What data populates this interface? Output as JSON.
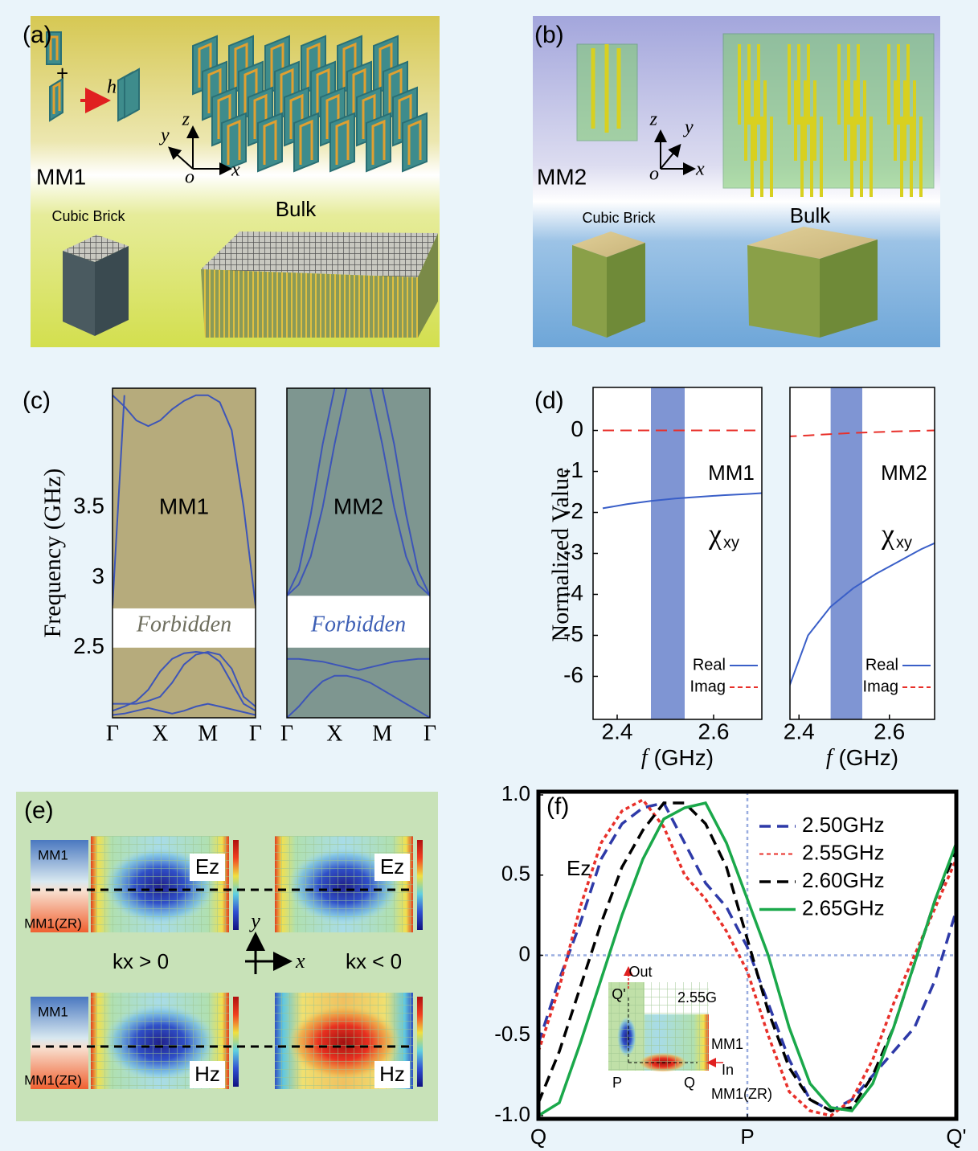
{
  "panel_a": {
    "label": "(a)",
    "h": "h",
    "y": "y",
    "z": "z",
    "o": "o",
    "x": "x",
    "unit": "MM1",
    "brick": "Cubic Brick",
    "bulk": "Bulk"
  },
  "panel_b": {
    "label": "(b)",
    "z": "z",
    "y": "y",
    "o": "o",
    "x": "x",
    "unit": "MM2",
    "brick": "Cubic Brick",
    "bulk": "Bulk"
  },
  "panel_e": {
    "label": "(e)",
    "top_left": {
      "upper": "MM1",
      "lower": "MM1(ZR)"
    },
    "bottom_left": {
      "upper": "MM1",
      "lower": "MM1(ZR)"
    },
    "ez": [
      "Ez",
      "Ez"
    ],
    "hz": [
      "Hz",
      "Hz"
    ],
    "kx_pos": "kx > 0",
    "kx_neg": "kx < 0",
    "y": "y",
    "x": "x"
  },
  "chart_data": [
    {
      "type": "line",
      "panel_label": "(c)",
      "ylabel": "Frequency (GHz)",
      "label": "MM1",
      "annotation": "Forbidden",
      "annotation_color": "#6e6e5e",
      "background": "#b6ab7c",
      "gap": [
        2.5,
        2.78
      ],
      "x": [
        0,
        0.25,
        0.5,
        0.75,
        1,
        1.25,
        1.5,
        1.75,
        2,
        2.25,
        2.5,
        2.75,
        3
      ],
      "xlim": [
        0,
        3
      ],
      "xticks": [
        {
          "value": 0,
          "label": "Γ"
        },
        {
          "value": 1,
          "label": "X"
        },
        {
          "value": 2,
          "label": "M"
        },
        {
          "value": 3,
          "label": "Γ"
        }
      ],
      "ylim": [
        2.0,
        4.35
      ],
      "yticks": [
        2.5,
        3,
        3.5
      ],
      "series": [
        {
          "color": "#3d55b8",
          "values": [
            4.3,
            4.22,
            4.12,
            4.08,
            4.12,
            4.2,
            4.26,
            4.3,
            4.3,
            4.25,
            4.05,
            3.5,
            2.8
          ]
        },
        {
          "color": "#3d55b8",
          "values": [
            2.8,
            4.3,
            null,
            null,
            null,
            null,
            null,
            null,
            null,
            null,
            null,
            null,
            null
          ]
        },
        {
          "color": "#3d55b8",
          "values": [
            2.05,
            2.08,
            2.12,
            2.2,
            2.33,
            2.42,
            2.46,
            2.47,
            2.46,
            2.4,
            2.25,
            2.1,
            2.05
          ]
        },
        {
          "color": "#3d55b8",
          "values": [
            2.1,
            2.1,
            2.1,
            2.12,
            2.15,
            2.25,
            2.38,
            2.45,
            2.47,
            2.45,
            2.35,
            2.15,
            2.08
          ]
        },
        {
          "color": "#3d55b8",
          "values": [
            2.02,
            2.03,
            2.05,
            2.07,
            2.05,
            2.03,
            2.05,
            2.08,
            2.1,
            2.08,
            2.06,
            2.04,
            2.02
          ]
        }
      ]
    },
    {
      "type": "line",
      "label": "MM2",
      "annotation": "Forbidden",
      "annotation_color": "#3d5fb5",
      "background": "#7e9690",
      "gap": [
        2.5,
        2.87
      ],
      "x": [
        0,
        0.25,
        0.5,
        0.75,
        1,
        1.25,
        1.5,
        1.75,
        2,
        2.25,
        2.5,
        2.75,
        3
      ],
      "xlim": [
        0,
        3
      ],
      "xticks": [
        {
          "value": 0,
          "label": "Γ"
        },
        {
          "value": 1,
          "label": "X"
        },
        {
          "value": 2,
          "label": "M"
        },
        {
          "value": 3,
          "label": "Γ"
        }
      ],
      "ylim": [
        2.0,
        4.35
      ],
      "series": [
        {
          "color": "#3d55b8",
          "values": [
            2.87,
            3.05,
            3.45,
            3.95,
            4.35,
            null,
            null,
            null,
            null,
            null,
            null,
            null,
            null
          ]
        },
        {
          "color": "#3d55b8",
          "values": [
            2.87,
            2.95,
            3.15,
            3.5,
            3.95,
            4.35,
            null,
            null,
            null,
            null,
            null,
            null,
            null
          ]
        },
        {
          "color": "#3d55b8",
          "values": [
            null,
            null,
            null,
            null,
            null,
            null,
            null,
            null,
            4.35,
            3.95,
            3.45,
            3.05,
            2.87
          ]
        },
        {
          "color": "#3d55b8",
          "values": [
            null,
            null,
            null,
            null,
            null,
            null,
            null,
            4.35,
            3.95,
            3.5,
            3.15,
            2.95,
            2.87
          ]
        },
        {
          "color": "#3d55b8",
          "values": [
            2.42,
            2.42,
            2.41,
            2.4,
            2.38,
            2.36,
            2.34,
            2.36,
            2.38,
            2.4,
            2.41,
            2.42,
            2.42
          ]
        },
        {
          "color": "#3d55b8",
          "values": [
            2.0,
            2.08,
            2.18,
            2.26,
            2.3,
            2.3,
            2.28,
            2.25,
            2.2,
            2.15,
            2.1,
            2.05,
            2.0
          ]
        }
      ]
    },
    {
      "type": "line",
      "panel_label": "(d)",
      "ylabel": "Normalized Value",
      "xlabel_var": "f",
      "xlabel": "(GHz)",
      "label": "MM1",
      "chi": "χ",
      "chi_sub": "xy",
      "shade": [
        2.47,
        2.54
      ],
      "shade_color": "#7f95d3",
      "x": [
        2.37,
        2.42,
        2.47,
        2.52,
        2.57,
        2.62,
        2.67,
        2.7
      ],
      "xlim": [
        2.35,
        2.7
      ],
      "xticks": [
        2.4,
        2.6
      ],
      "ylim": [
        -7.05,
        1.05
      ],
      "yticks": [
        0,
        -1,
        -2,
        -3,
        -4,
        -5,
        -6
      ],
      "series": [
        {
          "name": "Real",
          "color": "#3a5fc8",
          "style": "solid",
          "values": [
            -1.9,
            -1.8,
            -1.72,
            -1.66,
            -1.62,
            -1.58,
            -1.55,
            -1.53
          ]
        },
        {
          "name": "Imag",
          "color": "#e8302a",
          "style": "dashed",
          "values": [
            0,
            0,
            0,
            0,
            0,
            0,
            0,
            0
          ]
        }
      ]
    },
    {
      "type": "line",
      "xlabel_var": "f",
      "xlabel": "(GHz)",
      "label": "MM2",
      "chi": "χ",
      "chi_sub": "xy",
      "shade": [
        2.47,
        2.54
      ],
      "shade_color": "#7f95d3",
      "x": [
        2.37,
        2.42,
        2.47,
        2.52,
        2.57,
        2.62,
        2.67,
        2.7
      ],
      "xlim": [
        2.38,
        2.7
      ],
      "xticks": [
        2.4,
        2.6
      ],
      "ylim": [
        -7.05,
        1.05
      ],
      "series": [
        {
          "name": "Real",
          "color": "#3a5fc8",
          "style": "solid",
          "values": [
            -6.5,
            -5.0,
            -4.3,
            -3.85,
            -3.5,
            -3.2,
            -2.9,
            -2.75
          ]
        },
        {
          "name": "Imag",
          "color": "#e8302a",
          "style": "dashed",
          "values": [
            -0.15,
            -0.12,
            -0.09,
            -0.06,
            -0.04,
            -0.02,
            -0.01,
            0
          ]
        }
      ]
    },
    {
      "type": "line",
      "panel_label": "(f)",
      "annotation": "Ez",
      "x": [
        0,
        0.1,
        0.2,
        0.3,
        0.4,
        0.5,
        0.6,
        0.7,
        0.8,
        0.9,
        1,
        1.1,
        1.2,
        1.3,
        1.4,
        1.5,
        1.6,
        1.7,
        1.8,
        1.9,
        2
      ],
      "xlim": [
        0,
        2
      ],
      "xticks": [
        {
          "value": 0,
          "label": "Q"
        },
        {
          "value": 1,
          "label": "P"
        },
        {
          "value": 2,
          "label": "Q'"
        }
      ],
      "ylim": [
        -1.02,
        1.02
      ],
      "yticks": [
        {
          "value": 1,
          "label": "1.0"
        },
        0.5,
        0,
        -0.5,
        {
          "value": -1,
          "label": "-1.0"
        }
      ],
      "ref_lines": {
        "x": [
          1
        ],
        "y": [
          0
        ]
      },
      "series": [
        {
          "name": "2.50GHz",
          "color": "#2e3aa8",
          "style": "dashed",
          "values": [
            -0.55,
            -0.15,
            0.2,
            0.6,
            0.82,
            0.92,
            0.95,
            0.7,
            0.45,
            0.3,
            0.05,
            -0.3,
            -0.65,
            -0.9,
            -0.97,
            -0.9,
            -0.75,
            -0.6,
            -0.45,
            -0.15,
            0.28
          ]
        },
        {
          "name": "2.55GHz",
          "color": "#e8302a",
          "style": "dotted",
          "values": [
            -0.6,
            -0.2,
            0.3,
            0.7,
            0.9,
            0.97,
            0.8,
            0.5,
            0.35,
            0.15,
            -0.1,
            -0.5,
            -0.85,
            -0.97,
            -1.0,
            -0.9,
            -0.65,
            -0.3,
            0.0,
            0.3,
            0.6
          ]
        },
        {
          "name": "2.60GHz",
          "color": "#000000",
          "style": "dashed",
          "values": [
            -0.92,
            -0.6,
            -0.2,
            0.2,
            0.55,
            0.78,
            0.95,
            0.95,
            0.82,
            0.55,
            0.1,
            -0.35,
            -0.7,
            -0.9,
            -0.97,
            -0.95,
            -0.75,
            -0.45,
            -0.05,
            0.35,
            0.65
          ]
        },
        {
          "name": "2.65GHz",
          "color": "#1aa84a",
          "style": "solid",
          "values": [
            -1.0,
            -0.92,
            -0.55,
            -0.15,
            0.25,
            0.6,
            0.85,
            0.92,
            0.95,
            0.7,
            0.35,
            0.0,
            -0.45,
            -0.8,
            -0.95,
            -0.97,
            -0.8,
            -0.45,
            -0.05,
            0.35,
            0.7
          ]
        }
      ],
      "inset": {
        "out": "Out",
        "q_prime": "Q'",
        "freq": "2.55G",
        "mm1": "MM1",
        "in": "In",
        "p": "P",
        "q": "Q",
        "mm1zr": "MM1(ZR)"
      }
    }
  ]
}
